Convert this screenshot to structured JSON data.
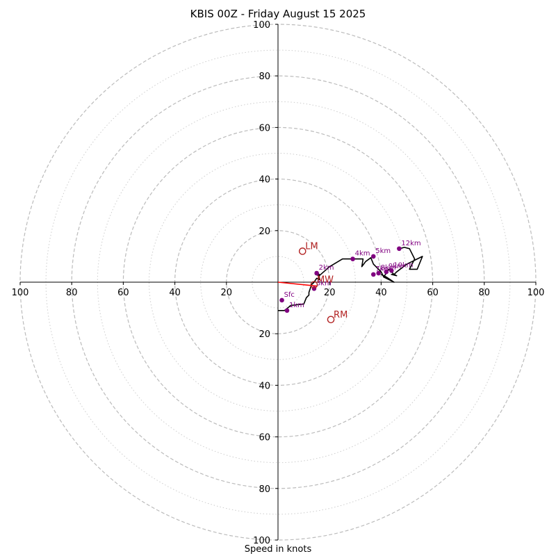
{
  "title": "KBIS 00Z - Friday August 15 2025",
  "footer": "Speed in knots",
  "chart_data": {
    "type": "scatter",
    "subtype": "hodograph",
    "title": "KBIS 00Z - Friday August 15 2025",
    "xlabel": "Speed in knots",
    "xlim": [
      -100,
      100
    ],
    "ylim": [
      -100,
      100
    ],
    "major_rings": [
      20,
      40,
      60,
      80,
      100
    ],
    "minor_rings": [
      10,
      30,
      50,
      70,
      90
    ],
    "ticks": [
      {
        "value": 20,
        "label": "20"
      },
      {
        "value": 40,
        "label": "40"
      },
      {
        "value": 60,
        "label": "60"
      },
      {
        "value": 80,
        "label": "80"
      },
      {
        "value": 100,
        "label": "100"
      }
    ],
    "trace": [
      [
        0,
        -11
      ],
      [
        2.5,
        -11
      ],
      [
        5,
        -9
      ],
      [
        10,
        -8.5
      ],
      [
        11,
        -6
      ],
      [
        12,
        -5
      ],
      [
        12,
        -4
      ],
      [
        13,
        -1
      ],
      [
        14,
        0
      ],
      [
        15,
        1.5
      ],
      [
        16,
        1
      ],
      [
        16,
        3
      ],
      [
        14.5,
        4
      ],
      [
        14.5,
        3
      ],
      [
        16,
        2.5
      ],
      [
        20,
        6
      ],
      [
        25,
        9
      ],
      [
        29,
        9
      ],
      [
        31,
        9
      ],
      [
        33,
        9
      ],
      [
        32.5,
        6
      ],
      [
        34,
        8
      ],
      [
        36,
        9.5
      ],
      [
        37,
        7
      ],
      [
        40,
        4
      ],
      [
        41,
        2
      ],
      [
        43,
        5
      ],
      [
        44,
        4
      ],
      [
        45,
        3
      ],
      [
        46,
        2.5
      ],
      [
        44,
        3
      ],
      [
        45,
        3
      ],
      [
        46,
        4
      ],
      [
        50,
        7
      ],
      [
        52,
        8
      ],
      [
        54,
        9
      ],
      [
        56,
        10
      ],
      [
        54,
        5
      ],
      [
        51,
        5
      ],
      [
        53,
        9
      ],
      [
        51,
        13
      ],
      [
        49,
        13.5
      ],
      [
        47,
        13
      ]
    ],
    "trace_tail": [
      [
        41,
        2
      ],
      [
        45,
        0
      ],
      [
        42,
        2
      ],
      [
        40,
        3
      ]
    ],
    "height_markers": [
      {
        "label": "Sfc",
        "x": 1.5,
        "y": -7
      },
      {
        "label": "1km",
        "x": 3.5,
        "y": -11
      },
      {
        "label": "2km",
        "x": 15,
        "y": 3.5
      },
      {
        "label": "3km",
        "x": 14,
        "y": -2.5
      },
      {
        "label": "4km",
        "x": 29,
        "y": 9
      },
      {
        "label": "5km",
        "x": 37,
        "y": 10
      },
      {
        "label": "7km",
        "x": 37,
        "y": 3
      },
      {
        "label": "8km",
        "x": 39,
        "y": 3.5
      },
      {
        "label": "9km",
        "x": 42,
        "y": 4
      },
      {
        "label": "10km",
        "x": 44,
        "y": 4.5
      },
      {
        "label": "12km",
        "x": 47,
        "y": 13
      }
    ],
    "motion_markers": [
      {
        "label": "LM",
        "x": 9.5,
        "y": 12
      },
      {
        "label": "RM",
        "x": 20.5,
        "y": -14.5
      },
      {
        "label": "MW",
        "x": 14,
        "y": -1
      }
    ],
    "mean_wind_vector": {
      "x": 15,
      "y": -1.5
    },
    "colors": {
      "trace": "#000000",
      "height_markers": "#800080",
      "motion_markers": "#b22222",
      "mean_wind_vector": "#ff0000",
      "grid_major": "#bbbbbb",
      "grid_minor": "#cccccc"
    },
    "grid": true
  }
}
